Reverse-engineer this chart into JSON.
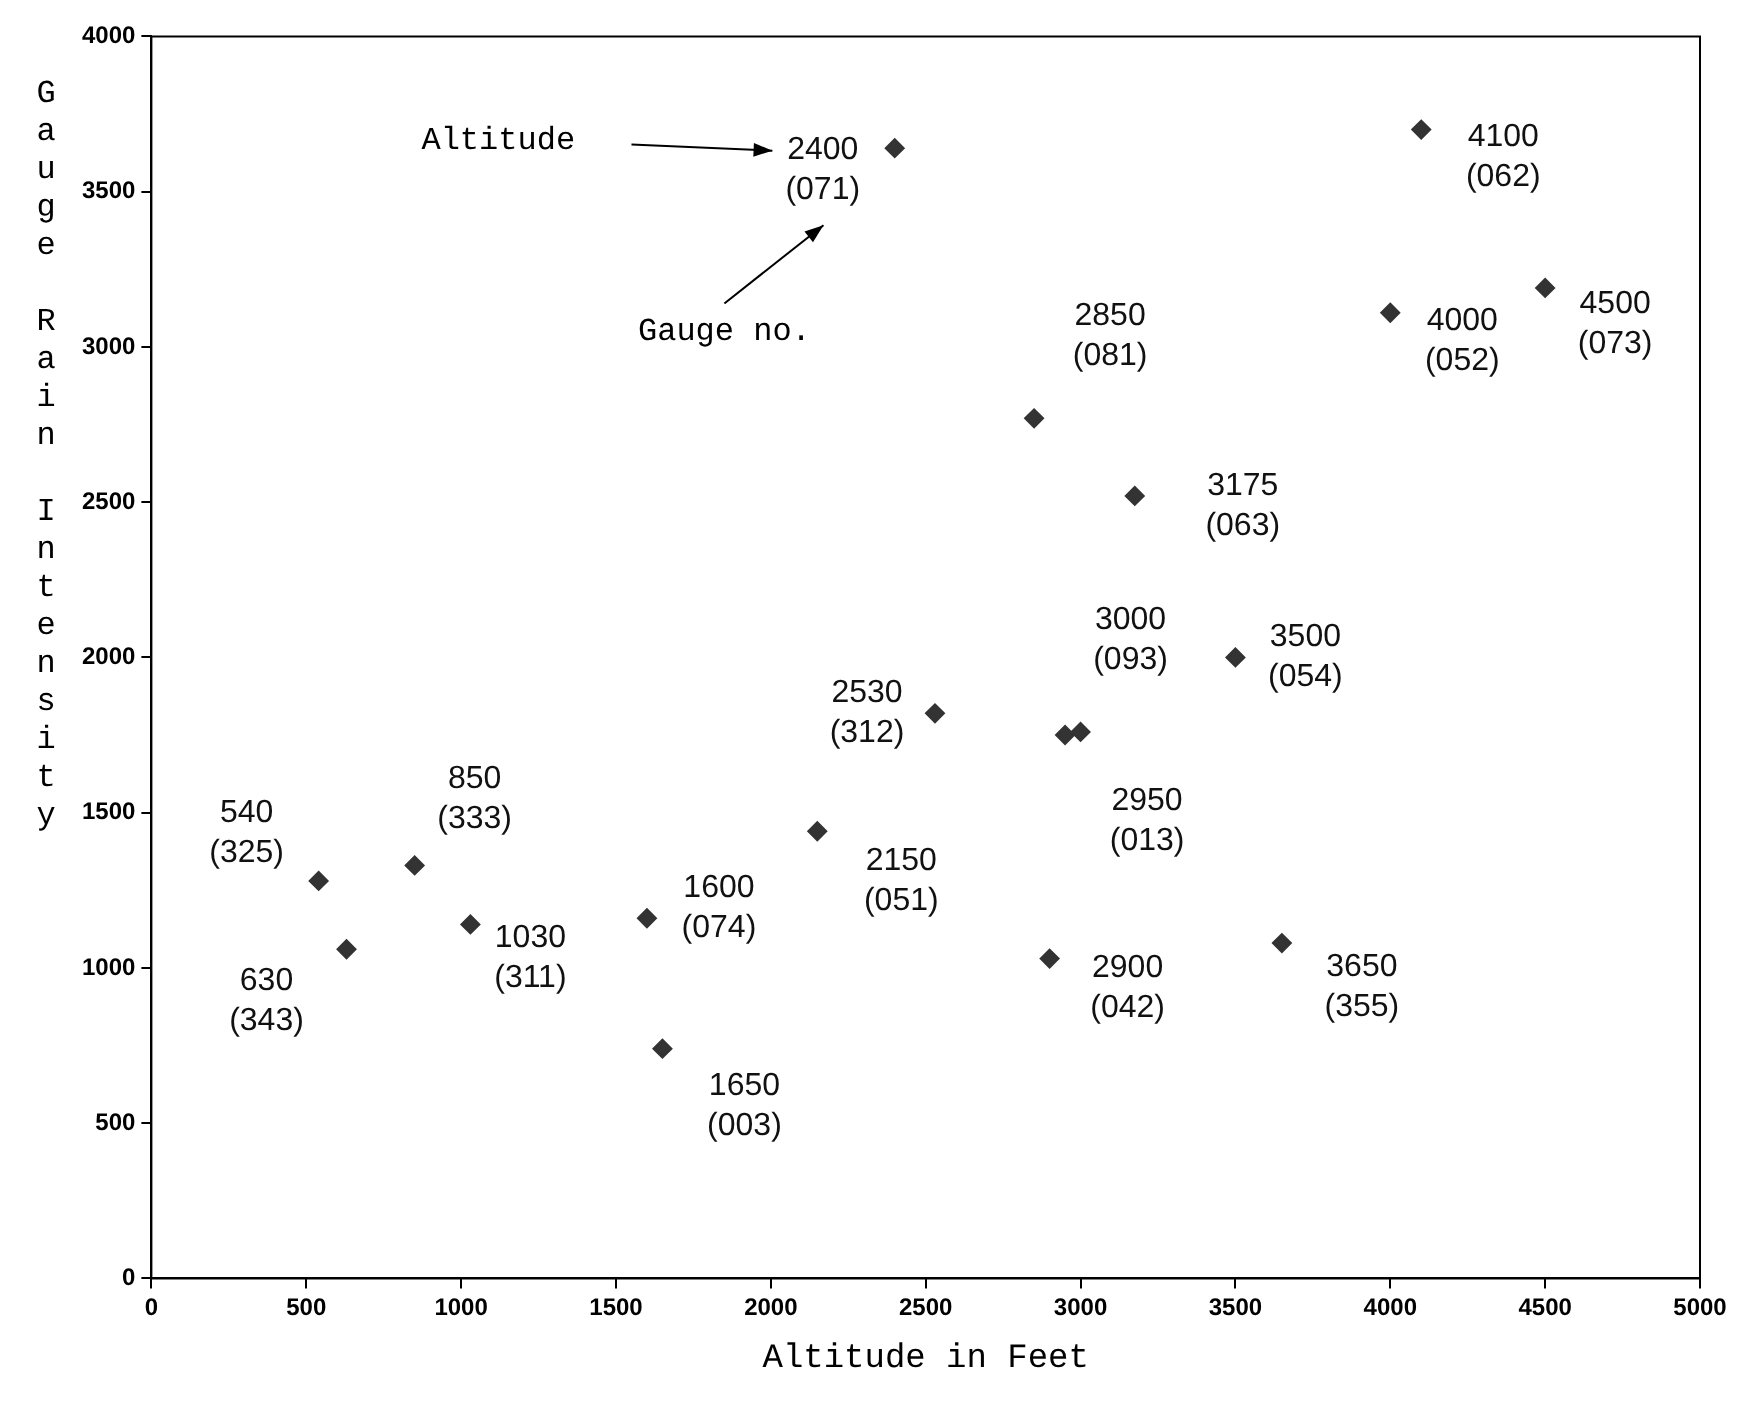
{
  "chart_data": {
    "type": "scatter",
    "xlabel": "Altitude in Feet",
    "ylabel": "Gauge Rain Intensity",
    "x": [
      540,
      630,
      850,
      1030,
      1600,
      1650,
      2150,
      2530,
      2400,
      2850,
      2900,
      2950,
      3000,
      3175,
      3500,
      3650,
      4000,
      4100,
      4500
    ],
    "values": [
      1280,
      1060,
      1330,
      1140,
      1160,
      740,
      1440,
      1820,
      3640,
      2770,
      1030,
      1750,
      1760,
      2520,
      2000,
      1080,
      3110,
      3700,
      3190
    ],
    "color": "#333333",
    "marker": "diamond",
    "grid": false,
    "legend": false,
    "xlim": [
      0,
      5000
    ],
    "xticks": [
      0,
      500,
      1000,
      1500,
      2000,
      2500,
      3000,
      3500,
      4000,
      4500,
      5000
    ],
    "ylim": [
      0,
      4000
    ],
    "yticks": [
      0,
      500,
      1000,
      1500,
      2000,
      2500,
      3000,
      3500,
      4000
    ],
    "annotations": [
      {
        "text": "540 (325)",
        "x": 540,
        "y": 1280
      },
      {
        "text": "630 (343)",
        "x": 630,
        "y": 1060
      },
      {
        "text": "850 (333)",
        "x": 850,
        "y": 1330
      },
      {
        "text": "1030 (311)",
        "x": 1030,
        "y": 1140
      },
      {
        "text": "1600 (074)",
        "x": 1600,
        "y": 1160
      },
      {
        "text": "1650 (003)",
        "x": 1650,
        "y": 740
      },
      {
        "text": "2150 (051)",
        "x": 2150,
        "y": 1440
      },
      {
        "text": "2530 (312)",
        "x": 2530,
        "y": 1820
      },
      {
        "text": "2400 (071)",
        "x": 2400,
        "y": 3640
      },
      {
        "text": "2850 (081)",
        "x": 2850,
        "y": 2770
      },
      {
        "text": "2900 (042)",
        "x": 2900,
        "y": 1030
      },
      {
        "text": "2950 (013)",
        "x": 2950,
        "y": 1750
      },
      {
        "text": "3000 (093)",
        "x": 3000,
        "y": 1760
      },
      {
        "text": "3175 (063)",
        "x": 3175,
        "y": 2520
      },
      {
        "text": "3500 (054)",
        "x": 3500,
        "y": 2000
      },
      {
        "text": "3650 (355)",
        "x": 3650,
        "y": 1080
      },
      {
        "text": "4000 (052)",
        "x": 4000,
        "y": 3110
      },
      {
        "text": "4100 (062)",
        "x": 4100,
        "y": 3700
      },
      {
        "text": "4500 (073)",
        "x": 4500,
        "y": 3190
      },
      "Altitude",
      "Gauge no."
    ]
  }
}
